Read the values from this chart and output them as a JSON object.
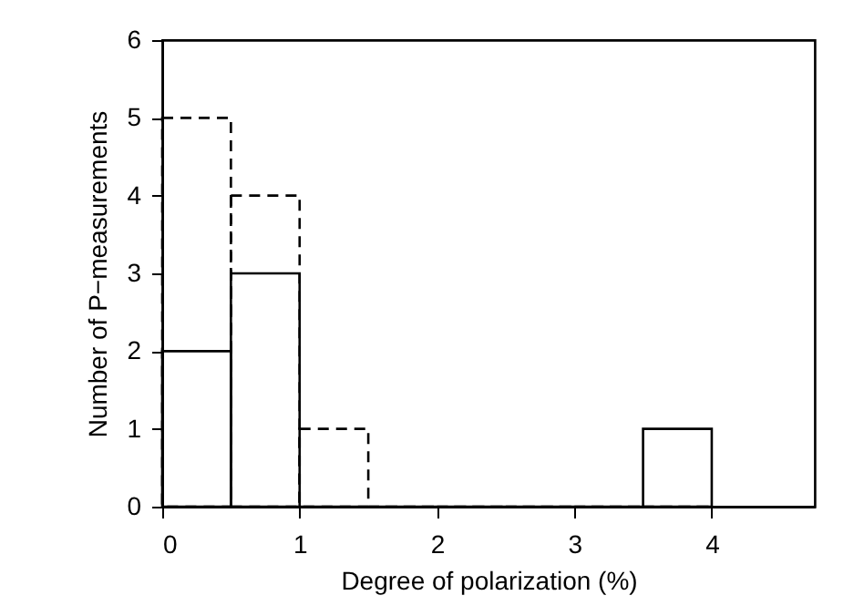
{
  "chart_data": {
    "type": "histogram",
    "xlabel": "Degree of polarization (%)",
    "ylabel": "Number of P−measurements",
    "bins": [
      0,
      0.5,
      1,
      1.5,
      2,
      2.5,
      3,
      3.5,
      4
    ],
    "series": [
      {
        "color": "#000000",
        "line_style": "dashed",
        "values": [
          5,
          4,
          1,
          0,
          0,
          0,
          0,
          0
        ]
      },
      {
        "color": "#000000",
        "line_style": "solid",
        "values": [
          2,
          3,
          0,
          0,
          0,
          0,
          0,
          1
        ]
      }
    ],
    "xlim": [
      0,
      4.75
    ],
    "xticks": [
      0,
      1,
      2,
      3,
      4
    ],
    "ylim": [
      0,
      6
    ],
    "yticks": [
      0,
      1,
      2,
      3,
      4,
      5,
      6
    ],
    "grid": false,
    "legend": false
  }
}
